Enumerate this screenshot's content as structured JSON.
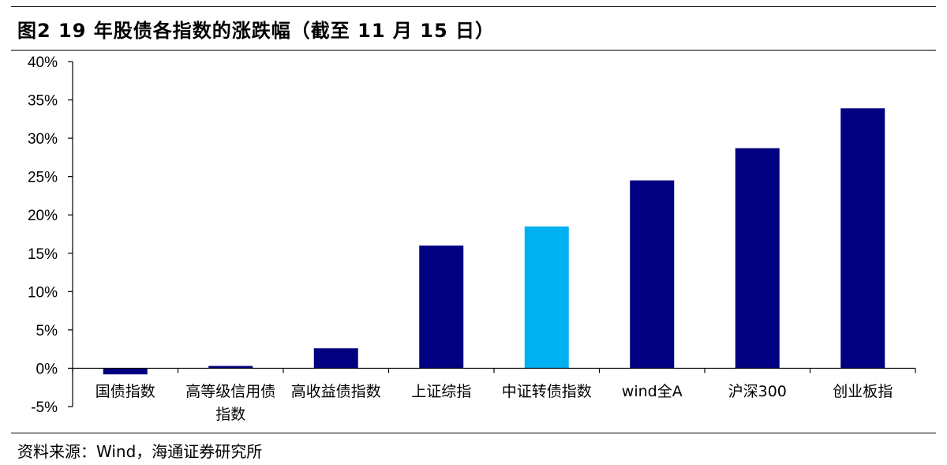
{
  "title": "图2  19 年股债各指数的涨跌幅（截至 11 月 15 日）",
  "source": "资料来源：Wind，海通证券研究所",
  "chart_data": {
    "type": "bar",
    "categories": [
      "国债指数",
      "高等级信用债指数",
      "高收益债指数",
      "上证综指",
      "中证转债指数",
      "wind全A",
      "沪深300",
      "创业板指"
    ],
    "category_lines": [
      [
        "国债指数"
      ],
      [
        "高等级信用债",
        "指数"
      ],
      [
        "高收益债指数"
      ],
      [
        "上证综指"
      ],
      [
        "中证转债指数"
      ],
      [
        "wind全A"
      ],
      [
        "沪深300"
      ],
      [
        "创业板指"
      ]
    ],
    "values": [
      -0.8,
      0.3,
      2.6,
      16.0,
      18.5,
      24.5,
      28.7,
      33.9
    ],
    "colors": [
      "#000080",
      "#000080",
      "#000080",
      "#000080",
      "#00B0F0",
      "#000080",
      "#000080",
      "#000080"
    ],
    "ylim": [
      -5,
      40
    ],
    "yticks": [
      -5,
      0,
      5,
      10,
      15,
      20,
      25,
      30,
      35,
      40
    ],
    "ytick_labels": [
      "-5%",
      "0%",
      "5%",
      "10%",
      "15%",
      "20%",
      "25%",
      "30%",
      "35%",
      "40%"
    ],
    "grid": false,
    "legend": "none"
  }
}
